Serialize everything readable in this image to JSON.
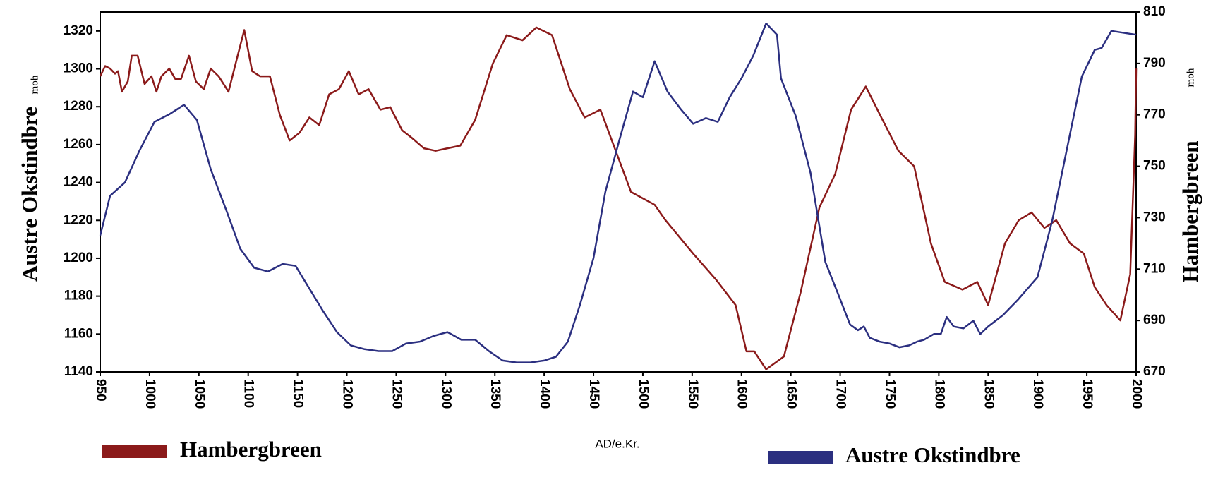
{
  "chart_data": {
    "type": "line",
    "x_label": "AD/e.Kr.",
    "y_label": "Austre Okstindbre",
    "y_unit": "moh",
    "y2_label": "Hambergbreen",
    "y2_unit": "moh",
    "xlim": [
      950,
      2000
    ],
    "xticks": [
      950,
      1000,
      1050,
      1100,
      1150,
      1200,
      1250,
      1300,
      1350,
      1400,
      1450,
      1500,
      1550,
      1600,
      1650,
      1700,
      1750,
      1800,
      1850,
      1900,
      1950,
      2000
    ],
    "ylim": [
      1140,
      1330
    ],
    "yticks": [
      1140,
      1160,
      1180,
      1200,
      1220,
      1240,
      1260,
      1280,
      1300,
      1320
    ],
    "y2lim": [
      670,
      810
    ],
    "y2ticks": [
      670,
      690,
      710,
      730,
      750,
      770,
      790,
      810
    ],
    "grid": false,
    "series": [
      {
        "name": "Hambergbreen",
        "color": "#8b1a1a",
        "axis": "y2",
        "x": [
          950,
          955,
          960,
          965,
          968,
          972,
          978,
          982,
          988,
          995,
          1002,
          1007,
          1012,
          1020,
          1026,
          1032,
          1040,
          1047,
          1055,
          1062,
          1070,
          1080,
          1088,
          1096,
          1104,
          1112,
          1122,
          1132,
          1142,
          1152,
          1162,
          1172,
          1182,
          1192,
          1202,
          1212,
          1222,
          1234,
          1244,
          1256,
          1266,
          1278,
          1290,
          1302,
          1315,
          1330,
          1348,
          1362,
          1378,
          1392,
          1408,
          1426,
          1441,
          1457,
          1488,
          1512,
          1523,
          1551,
          1574,
          1594,
          1605,
          1613,
          1625,
          1643,
          1660,
          1679,
          1695,
          1711,
          1726,
          1743,
          1759,
          1775,
          1792,
          1806,
          1824,
          1839,
          1850,
          1867,
          1881,
          1894,
          1907,
          1919,
          1933,
          1947,
          1958,
          1970,
          1984,
          1994,
          1999,
          2000
        ],
        "values": [
          785,
          789,
          788,
          786,
          787,
          779,
          783,
          793,
          793,
          782,
          785,
          779,
          785,
          788,
          784,
          784,
          793,
          783,
          780,
          788,
          785,
          779,
          791,
          803,
          787,
          785,
          785,
          770,
          760,
          763,
          769,
          766,
          778,
          780,
          787,
          778,
          780,
          772,
          773,
          764,
          761,
          757,
          756,
          757,
          758,
          768,
          790,
          801,
          799,
          804,
          801,
          780,
          769,
          772,
          740,
          735,
          729,
          716,
          706,
          696,
          678,
          678,
          671,
          676,
          701,
          734,
          747,
          772,
          781,
          768,
          756,
          750,
          720,
          705,
          702,
          705,
          696,
          720,
          729,
          732,
          726,
          729,
          720,
          716,
          703,
          696,
          690,
          708,
          762,
          788
        ]
      },
      {
        "name": "Austre Okstindbre",
        "color": "#2b2f80",
        "x": [
          950,
          960,
          975,
          990,
          1005,
          1020,
          1035,
          1048,
          1062,
          1078,
          1092,
          1106,
          1120,
          1135,
          1148,
          1162,
          1176,
          1190,
          1204,
          1218,
          1232,
          1246,
          1260,
          1274,
          1288,
          1302,
          1316,
          1330,
          1344,
          1358,
          1372,
          1386,
          1400,
          1412,
          1424,
          1436,
          1450,
          1462,
          1476,
          1490,
          1500,
          1512,
          1525,
          1538,
          1551,
          1564,
          1576,
          1588,
          1600,
          1612,
          1625,
          1636,
          1640,
          1655,
          1670,
          1685,
          1698,
          1710,
          1718,
          1724,
          1730,
          1740,
          1750,
          1760,
          1770,
          1778,
          1785,
          1795,
          1802,
          1808,
          1815,
          1825,
          1835,
          1842,
          1850,
          1865,
          1880,
          1900,
          1915,
          1930,
          1945,
          1958,
          1965,
          1975,
          2000
        ],
        "values": [
          1212,
          1233,
          1240,
          1257,
          1272,
          1276,
          1281,
          1273,
          1247,
          1225,
          1205,
          1195,
          1193,
          1197,
          1196,
          1184,
          1172,
          1161,
          1154,
          1152,
          1151,
          1151,
          1155,
          1156,
          1159,
          1161,
          1157,
          1157,
          1151,
          1146,
          1145,
          1145,
          1146,
          1148,
          1156,
          1175,
          1200,
          1235,
          1262,
          1288,
          1285,
          1304,
          1288,
          1279,
          1271,
          1274,
          1272,
          1285,
          1295,
          1307,
          1324,
          1318,
          1295,
          1275,
          1245,
          1198,
          1181,
          1165,
          1162,
          1164,
          1158,
          1156,
          1155,
          1153,
          1154,
          1156,
          1157,
          1160,
          1160,
          1169,
          1164,
          1163,
          1167,
          1160,
          1164,
          1170,
          1178,
          1190,
          1220,
          1258,
          1296,
          1310,
          1311,
          1320,
          1318
        ]
      }
    ]
  }
}
